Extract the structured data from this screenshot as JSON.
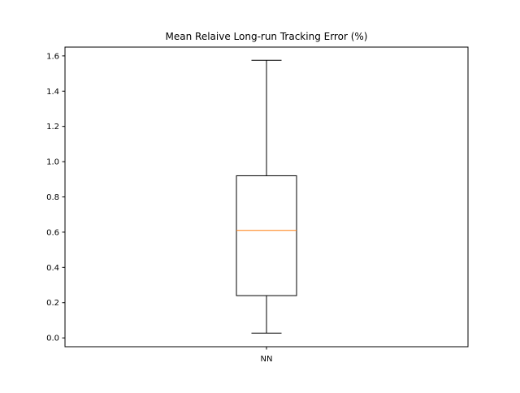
{
  "chart_data": {
    "type": "box",
    "title": "Mean Relaive Long-run Tracking Error (%)",
    "xlabel": "",
    "ylabel": "",
    "categories": [
      "NN"
    ],
    "boxes": [
      {
        "label": "NN",
        "whisker_low": 0.027,
        "q1": 0.24,
        "median": 0.61,
        "q3": 0.92,
        "whisker_high": 1.575
      }
    ],
    "ylim": [
      -0.05,
      1.65
    ],
    "yticks": [
      "0.0",
      "0.2",
      "0.4",
      "0.6",
      "0.8",
      "1.0",
      "1.2",
      "1.4",
      "1.6"
    ],
    "grid": false,
    "colors": {
      "box": "#000000",
      "median": "#ff7f0e",
      "background": "#ffffff"
    }
  }
}
